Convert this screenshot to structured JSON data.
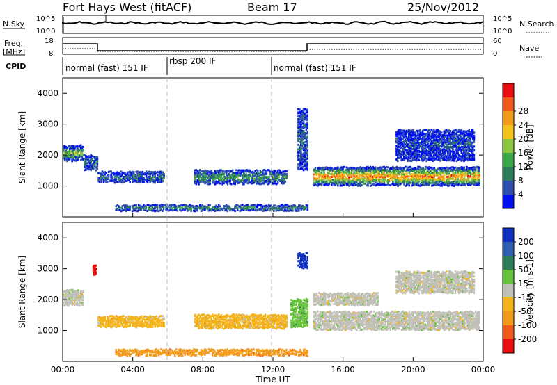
{
  "header": {
    "station": "Fort Hays West (fitACF)",
    "beam": "Beam 17",
    "date": "25/Nov/2012"
  },
  "noise_panel": {
    "left_label": "N.Sky",
    "right_label": "N.Search",
    "left_ticks": [
      "10^5",
      "10^0"
    ],
    "right_ticks": [
      "10^5",
      "10^0"
    ]
  },
  "freq_panel": {
    "left_label_1": "Freq.",
    "left_label_2": "[MHz]",
    "left_ticks": [
      "18",
      "8"
    ],
    "right_label": "Nave",
    "right_ticks": [
      "60",
      "0"
    ]
  },
  "cpid_panel": {
    "label": "CPID",
    "segments": [
      {
        "name": "normal (fast) 151 IF",
        "start_h": 0,
        "end_h": 6
      },
      {
        "name": "rbsp 200 IF",
        "start_h": 6,
        "end_h": 12
      },
      {
        "name": "normal (fast) 151 IF",
        "start_h": 12,
        "end_h": 24
      }
    ]
  },
  "chart_data": [
    {
      "type": "heatmap",
      "name": "Power",
      "ylabel": "Slant Range [km]",
      "xlim": [
        0,
        24
      ],
      "ylim": [
        0,
        4500
      ],
      "yticks": [
        "1000",
        "2000",
        "3000",
        "4000"
      ],
      "colorbar": {
        "label": "Power [dB]",
        "ticks": [
          "4",
          "8",
          "12",
          "16",
          "20",
          "24",
          "28"
        ],
        "colors": [
          "#0010f0",
          "#2f4fb0",
          "#2e7d5a",
          "#3aa84a",
          "#8cc63f",
          "#f3c21b",
          "#f39a1b",
          "#f05a1b",
          "#e81010"
        ]
      },
      "regions": [
        {
          "t0": 0.0,
          "t1": 1.2,
          "r0": 1800,
          "r1": 2300,
          "level": 0.55
        },
        {
          "t0": 1.2,
          "t1": 2.0,
          "r0": 1500,
          "r1": 2000,
          "level": 0.2
        },
        {
          "t0": 2.0,
          "t1": 5.8,
          "r0": 1100,
          "r1": 1450,
          "level": 0.25
        },
        {
          "t0": 7.5,
          "t1": 12.8,
          "r0": 1050,
          "r1": 1500,
          "level": 0.4
        },
        {
          "t0": 13.4,
          "t1": 14.0,
          "r0": 1500,
          "r1": 3500,
          "level": 0.2
        },
        {
          "t0": 14.3,
          "t1": 23.8,
          "r0": 1000,
          "r1": 1600,
          "level": 0.9
        },
        {
          "t0": 19.0,
          "t1": 23.5,
          "r0": 1800,
          "r1": 2800,
          "level": 0.1
        },
        {
          "t0": 3.0,
          "t1": 14.0,
          "r0": 180,
          "r1": 380,
          "level": 0.45
        }
      ]
    },
    {
      "type": "heatmap",
      "name": "Velocity",
      "ylabel": "Slant Range [km]",
      "xlabel": "Time UT",
      "xlim": [
        0,
        24
      ],
      "ylim": [
        0,
        4500
      ],
      "yticks": [
        "1000",
        "2000",
        "3000",
        "4000"
      ],
      "xticks": [
        "00:00",
        "04:00",
        "08:00",
        "12:00",
        "16:00",
        "20:00",
        "00:00"
      ],
      "colorbar": {
        "label": "Velocity [m s-1]",
        "ticks": [
          "200",
          "100",
          "50",
          "15",
          "-15",
          "-50",
          "-100",
          "-200"
        ],
        "colors": [
          "#1030c0",
          "#2f5fb0",
          "#2e7d5a",
          "#66c33a",
          "#c0c0b8",
          "#f3b31b",
          "#f39a1b",
          "#f05a1b",
          "#e81010"
        ]
      },
      "regions": [
        {
          "t0": 0.0,
          "t1": 1.2,
          "r0": 1800,
          "r1": 2300,
          "level": 4
        },
        {
          "t0": 2.0,
          "t1": 5.8,
          "r0": 1100,
          "r1": 1450,
          "level": 5
        },
        {
          "t0": 7.5,
          "t1": 12.8,
          "r0": 1050,
          "r1": 1500,
          "level": 5
        },
        {
          "t0": 13.4,
          "t1": 14.0,
          "r0": 3000,
          "r1": 3500,
          "level": 0
        },
        {
          "t0": 13.0,
          "t1": 14.0,
          "r0": 1100,
          "r1": 2000,
          "level": 3
        },
        {
          "t0": 14.3,
          "t1": 23.8,
          "r0": 1000,
          "r1": 1600,
          "level": 4
        },
        {
          "t0": 14.3,
          "t1": 18.0,
          "r0": 1800,
          "r1": 2200,
          "level": 4
        },
        {
          "t0": 19.0,
          "t1": 23.5,
          "r0": 2200,
          "r1": 2900,
          "level": 4
        },
        {
          "t0": 3.0,
          "t1": 14.0,
          "r0": 180,
          "r1": 380,
          "level": 6
        },
        {
          "t0": 1.7,
          "t1": 1.9,
          "r0": 2800,
          "r1": 3100,
          "level": 8
        }
      ]
    }
  ]
}
